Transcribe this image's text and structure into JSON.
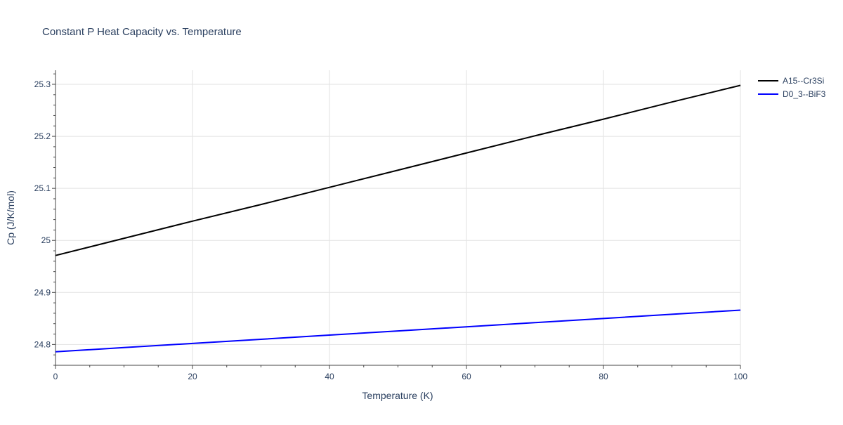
{
  "chart_data": {
    "type": "line",
    "title": "Constant P Heat Capacity vs. Temperature",
    "xlabel": "Temperature (K)",
    "ylabel": "Cp (J/K/mol)",
    "xlim": [
      0,
      100
    ],
    "ylim": [
      24.76,
      25.327
    ],
    "x_ticks": [
      0,
      20,
      40,
      60,
      80,
      100
    ],
    "x_tick_labels": [
      "0",
      "20",
      "40",
      "60",
      "80",
      "100"
    ],
    "y_ticks": [
      24.8,
      24.9,
      25.0,
      25.1,
      25.2,
      25.3
    ],
    "y_tick_labels": [
      "24.8",
      "24.9",
      "25",
      "25.1",
      "25.2",
      "25.3"
    ],
    "grid": true,
    "legend_position": "top-right, outside plot",
    "series": [
      {
        "name": "A15--Cr3Si",
        "color": "#000000",
        "x": [
          0,
          10,
          20,
          30,
          40,
          50,
          60,
          70,
          80,
          90,
          100
        ],
        "y": [
          24.971,
          25.004,
          25.037,
          25.069,
          25.102,
          25.135,
          25.168,
          25.201,
          25.233,
          25.266,
          25.298
        ]
      },
      {
        "name": "D0_3--BiF3",
        "color": "#0000ff",
        "x": [
          0,
          10,
          20,
          30,
          40,
          50,
          60,
          70,
          80,
          90,
          100
        ],
        "y": [
          24.786,
          24.794,
          24.802,
          24.81,
          24.818,
          24.826,
          24.834,
          24.842,
          24.85,
          24.858,
          24.866
        ]
      }
    ]
  }
}
